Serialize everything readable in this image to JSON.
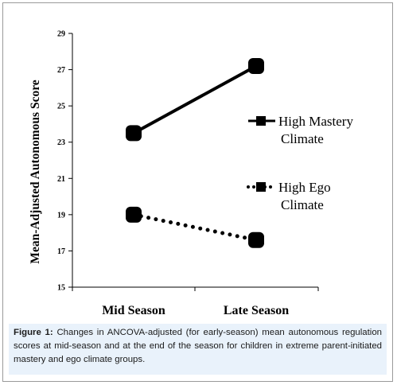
{
  "chart_data": {
    "type": "line",
    "categories": [
      "Mid Season",
      "Late Season"
    ],
    "ylabel": "Mean-Adjusted Autonomous Score",
    "xlabel": "",
    "ylim": [
      15,
      29
    ],
    "yticks": [
      15,
      17,
      19,
      21,
      23,
      25,
      27,
      29
    ],
    "grid": false,
    "legend_position": "right",
    "series": [
      {
        "name_line1": "High Mastery",
        "name_line2": "Climate",
        "values": [
          23.5,
          27.2
        ],
        "line_style": "solid",
        "color": "#000000"
      },
      {
        "name_line1": "High Ego",
        "name_line2": "Climate",
        "values": [
          19.0,
          17.6
        ],
        "line_style": "dotted",
        "color": "#000000"
      }
    ]
  },
  "caption": {
    "label": "Figure 1:",
    "text": " Changes in ANCOVA-adjusted (for early-season) mean autonomous regulation scores at mid-season and at the end of the season for children in extreme parent-initiated mastery and ego climate groups."
  },
  "colors": {
    "caption_background": "#e9f2fb",
    "frame_border": "#9a9a9a"
  }
}
